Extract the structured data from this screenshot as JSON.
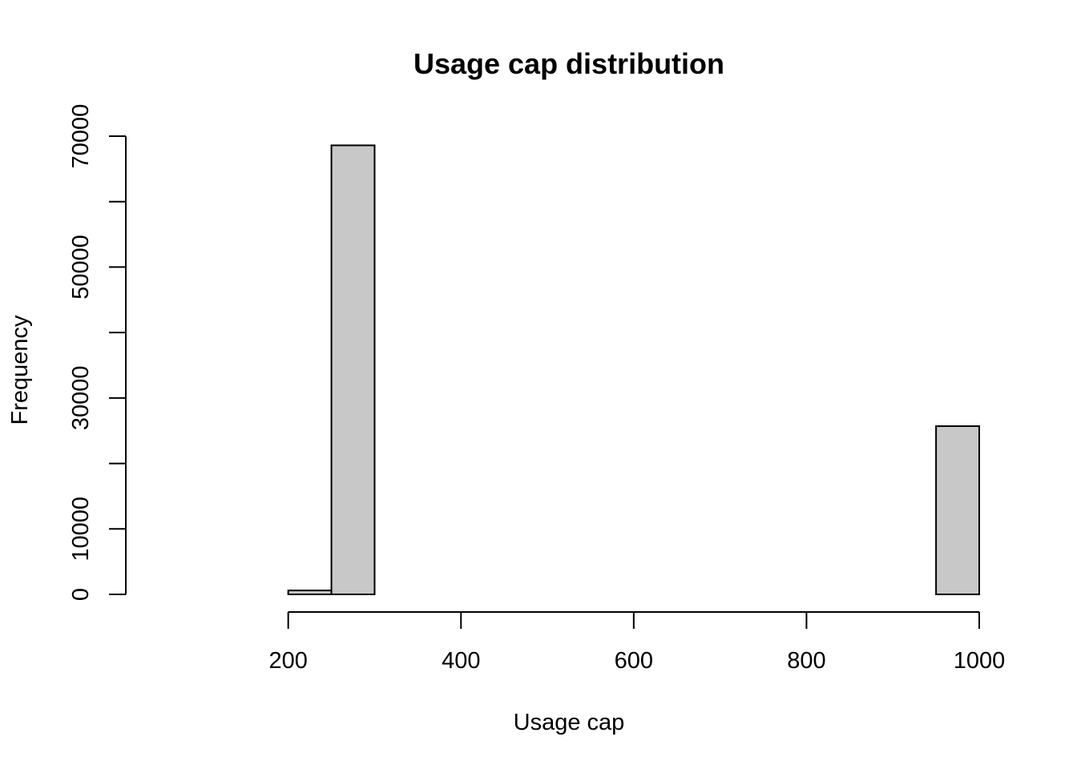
{
  "chart_data": {
    "type": "bar",
    "title": "Usage cap distribution",
    "xlabel": "Usage cap",
    "ylabel": "Frequency",
    "histogram": true,
    "bin_edges": [
      50,
      100,
      150,
      200,
      250,
      300,
      350,
      400,
      450,
      500,
      550,
      600,
      650,
      700,
      750,
      800,
      850,
      900,
      950,
      1000
    ],
    "values": [
      0,
      0,
      0,
      600,
      68600,
      0,
      0,
      0,
      0,
      0,
      0,
      0,
      0,
      0,
      0,
      0,
      0,
      0,
      25700
    ],
    "xlim": [
      50,
      1000
    ],
    "ylim": [
      0,
      70000
    ],
    "x_ticks": [
      200,
      400,
      600,
      800,
      1000
    ],
    "y_ticks": [
      0,
      10000,
      20000,
      30000,
      40000,
      50000,
      60000,
      70000
    ],
    "y_tick_labels": [
      "0",
      "10000",
      "",
      "30000",
      "",
      "50000",
      "",
      "70000"
    ],
    "grid": false,
    "bar_color": "#c8c8c8",
    "edge_color": "#000000"
  }
}
